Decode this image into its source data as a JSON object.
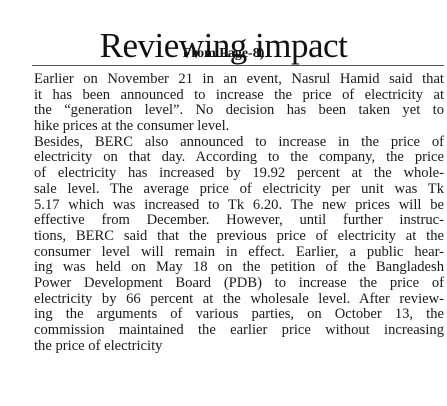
{
  "article": {
    "headline": "Reviewing impact",
    "jump_line": "From Page-8)",
    "paragraphs": [
      {
        "lines": [
          "Earlier on November 21 in an event, Nasrul Hamid said that",
          "it has been announced to increase the price of electricity at",
          "the “generation level”. No decision has been taken yet to",
          "hike prices at the consumer level."
        ]
      },
      {
        "lines": [
          "Besides, BERC also announced to increase in the price of",
          "electricity on that day. According to the company, the price",
          "of electricity has increased by 19.92 percent at the whole-",
          "sale level. The average price of electricity per unit was Tk",
          "5.17 which was increased to Tk 6.20. The new prices will be",
          "effective from December. However, until further instruc-",
          "tions, BERC said that the previous price of electricity at the",
          "consumer level will remain in effect. Earlier, a public hear-",
          "ing was held on May 18 on the petition of the Bangladesh",
          "Power Development Board (PDB) to increase the price of",
          "electricity by 66 percent at the wholesale level. After review-",
          "ing the arguments of various parties, on October 13, the",
          "commission maintained the earlier price without increasing",
          "the price of electricity"
        ]
      }
    ]
  }
}
